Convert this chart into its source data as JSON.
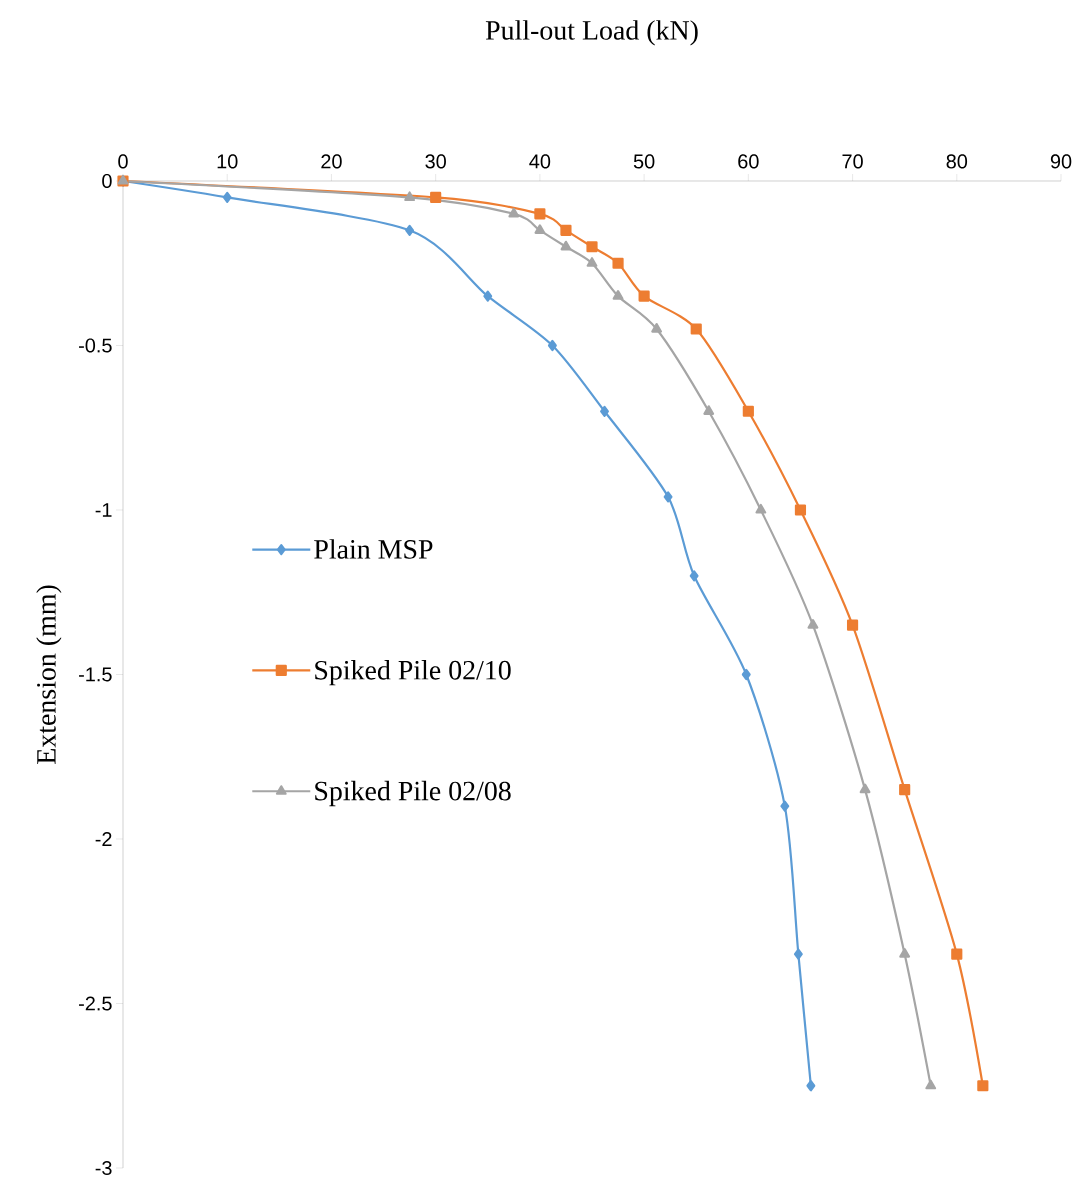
{
  "chart_data": {
    "type": "line",
    "xlabel": "Pull-out Load (kN)",
    "ylabel": "Extension (mm)",
    "xlim": [
      0,
      90
    ],
    "ylim": [
      -3,
      0
    ],
    "xticks": [
      0,
      10,
      20,
      30,
      40,
      50,
      60,
      70,
      80,
      90
    ],
    "yticks": [
      0,
      -0.5,
      -1,
      -1.5,
      -2,
      -2.5,
      -3
    ],
    "grid": false,
    "legend": "left",
    "line_style": "solid",
    "series": [
      {
        "name": "Plain MSP",
        "color": "#5b9bd5",
        "marker": "diamond",
        "x": [
          0,
          10,
          27.5,
          35,
          41.2,
          46.2,
          52.3,
          54.8,
          59.8,
          63.5,
          64.8,
          66
        ],
        "values": [
          0,
          -0.05,
          -0.15,
          -0.35,
          -0.5,
          -0.7,
          -0.96,
          -1.2,
          -1.5,
          -1.9,
          -2.35,
          -2.75
        ]
      },
      {
        "name": "Spiked Pile 02/10",
        "color": "#ed7d31",
        "marker": "square",
        "x": [
          0,
          30,
          40,
          42.5,
          45,
          47.5,
          50,
          55,
          60,
          65,
          70,
          75,
          80,
          82.5
        ],
        "values": [
          0,
          -0.05,
          -0.1,
          -0.15,
          -0.2,
          -0.25,
          -0.35,
          -0.45,
          -0.7,
          -1,
          -1.35,
          -1.85,
          -2.35,
          -2.75
        ]
      },
      {
        "name": "Spiked Pile 02/08",
        "color": "#a5a5a5",
        "marker": "triangle",
        "x": [
          0,
          27.5,
          37.5,
          40,
          42.5,
          45,
          47.5,
          51.2,
          56.2,
          61.2,
          66.2,
          71.2,
          75,
          77.5
        ],
        "values": [
          0,
          -0.05,
          -0.1,
          -0.15,
          -0.2,
          -0.25,
          -0.35,
          -0.45,
          -0.7,
          -1,
          -1.35,
          -1.85,
          -2.35,
          -2.75
        ]
      }
    ]
  }
}
